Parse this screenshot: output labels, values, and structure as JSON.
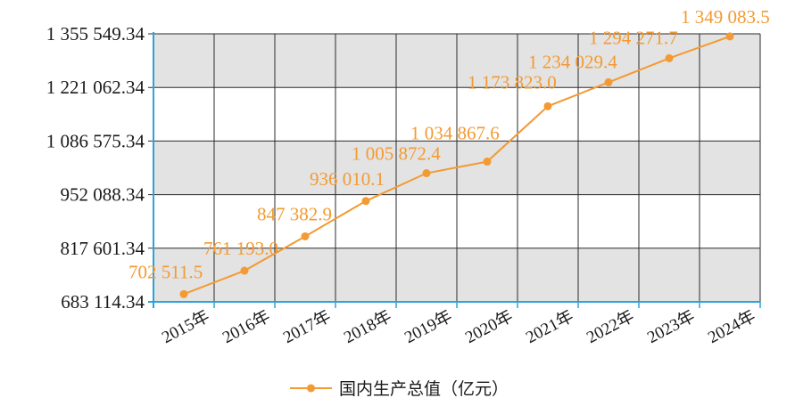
{
  "chart_data": {
    "type": "line",
    "categories": [
      "2015年",
      "2016年",
      "2017年",
      "2018年",
      "2019年",
      "2020年",
      "2021年",
      "2022年",
      "2023年",
      "2024年"
    ],
    "series": [
      {
        "name": "国内生产总值（亿元）",
        "values": [
          702511.5,
          761193.0,
          847382.9,
          936010.1,
          1005872.4,
          1034867.6,
          1173823.0,
          1234029.4,
          1294271.7,
          1349083.5
        ],
        "labels": [
          "702 511.5",
          "761 193.0",
          "847 382.9",
          "936 010.1",
          "1 005 872.4",
          "1 034 867.6",
          "1 173 823.0",
          "1 234 029.4",
          "1 294 271.7",
          "1 349 083.5"
        ]
      }
    ],
    "y_ticks": [
      683114.34,
      817601.34,
      952088.34,
      1086575.34,
      1221062.34,
      1355549.34
    ],
    "y_tick_labels": [
      "683 114.34",
      "817 601.34",
      "952 088.34",
      "1 086 575.34",
      "1 221 062.34",
      "1 355 549.34"
    ],
    "ylim": [
      683114.34,
      1355549.34
    ],
    "grid": true,
    "legend": "bottom-center",
    "colors": {
      "line": "#f39a32",
      "band_gray": "#e3e3e3",
      "band_white": "#ffffff",
      "grid": "#2b2b2b",
      "axis": "#2aa3dc"
    }
  }
}
